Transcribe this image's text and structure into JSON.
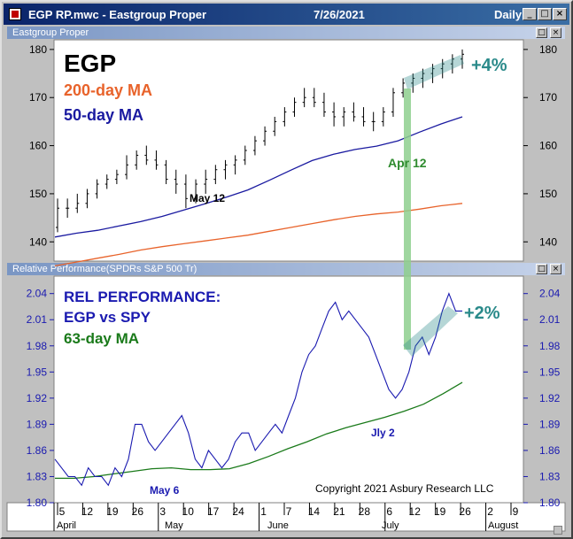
{
  "window": {
    "title": "EGP RP.mwc - Eastgroup Proper",
    "date": "7/26/2021",
    "period": "Daily",
    "min_label": "_",
    "max_label": "□",
    "close_label": "×"
  },
  "colors": {
    "price_bars": "#000000",
    "ma200": "#e8632b",
    "ma50": "#1a1aa0",
    "rel": "#1a1ab0",
    "ma63": "#1a7a1a",
    "annotation_teal": "#2a8a8a",
    "arrow_green": "#8fd08f"
  },
  "top_pane": {
    "header": "Eastgroup Proper",
    "ticker": "EGP",
    "ma200_label": "200-day MA",
    "ma50_label": "50-day MA",
    "pct_label": "+4%",
    "apr12_label": "Apr 12",
    "may12_label": "May 12"
  },
  "bottom_pane": {
    "header": "Relative Performance(SPDRs S&P 500 Tr)",
    "title_line1": "REL PERFORMANCE:",
    "title_line2": "EGP vs SPY",
    "ma_label": "63-day MA",
    "pct_label": "+2%",
    "jly2_label": "Jly 2",
    "may6_label": "May 6",
    "copyright": "Copyright 2021 Asbury Research LLC"
  },
  "x_axis": {
    "ticks": [
      "5",
      "12",
      "19",
      "26",
      "3",
      "10",
      "17",
      "24",
      "1",
      "7",
      "14",
      "21",
      "28",
      "6",
      "12",
      "19",
      "26",
      "2",
      "9"
    ],
    "months": [
      "April",
      "May",
      "June",
      "July",
      "August"
    ]
  },
  "chart_data": [
    {
      "type": "line",
      "title": "Eastgroup Proper",
      "x_dates": [
        "2021-04-01",
        "2021-04-06",
        "2021-04-12",
        "2021-04-19",
        "2021-04-26",
        "2021-05-03",
        "2021-05-07",
        "2021-05-12",
        "2021-05-17",
        "2021-05-24",
        "2021-06-01",
        "2021-06-07",
        "2021-06-14",
        "2021-06-21",
        "2021-06-28",
        "2021-07-02",
        "2021-07-06",
        "2021-07-12",
        "2021-07-19",
        "2021-07-26"
      ],
      "ylim": [
        136,
        182
      ],
      "yticks": [
        140,
        150,
        160,
        170,
        180
      ],
      "series": [
        {
          "name": "EGP",
          "type": "ohlc",
          "values": [
            [
              143,
              149,
              142,
              147
            ],
            [
              147,
              149,
              145,
              147
            ],
            [
              147,
              150,
              146,
              148
            ],
            [
              148,
              151,
              147,
              150
            ],
            [
              150,
              153,
              149,
              152
            ],
            [
              152,
              154,
              151,
              153
            ],
            [
              153,
              155,
              152,
              154
            ],
            [
              154,
              158,
              153,
              156
            ],
            [
              156,
              159,
              155,
              158
            ],
            [
              158,
              160,
              156,
              157
            ],
            [
              157,
              159,
              155,
              156
            ],
            [
              156,
              157,
              152,
              153
            ],
            [
              153,
              155,
              150,
              152
            ],
            [
              152,
              154,
              147,
              149
            ],
            [
              149,
              153,
              148,
              152
            ],
            [
              152,
              155,
              150,
              153
            ],
            [
              153,
              156,
              152,
              155
            ],
            [
              155,
              157,
              153,
              156
            ],
            [
              156,
              158,
              154,
              157
            ],
            [
              157,
              160,
              156,
              159
            ],
            [
              159,
              162,
              158,
              161
            ],
            [
              161,
              164,
              160,
              163
            ],
            [
              163,
              166,
              162,
              165
            ],
            [
              165,
              168,
              164,
              167
            ],
            [
              167,
              170,
              166,
              169
            ],
            [
              169,
              172,
              168,
              170
            ],
            [
              170,
              172,
              168,
              169
            ],
            [
              169,
              171,
              166,
              167
            ],
            [
              167,
              169,
              164,
              166
            ],
            [
              166,
              168,
              164,
              167
            ],
            [
              167,
              169,
              165,
              166
            ],
            [
              166,
              168,
              164,
              165
            ],
            [
              165,
              167,
              163,
              165
            ],
            [
              165,
              168,
              164,
              167
            ],
            [
              167,
              172,
              166,
              171
            ],
            [
              171,
              174,
              170,
              173
            ],
            [
              173,
              175,
              171,
              174
            ],
            [
              174,
              176,
              172,
              175
            ],
            [
              175,
              177,
              173,
              176
            ],
            [
              176,
              178,
              174,
              177
            ],
            [
              177,
              179,
              175,
              178
            ],
            [
              178,
              180,
              176,
              179
            ]
          ]
        },
        {
          "name": "50-day MA",
          "values": [
            141,
            141.8,
            142.4,
            143.3,
            144.2,
            145.3,
            146.6,
            147.9,
            149.3,
            150.8,
            152.8,
            154.9,
            156.9,
            158.2,
            159.2,
            159.9,
            161,
            162.8,
            164.5,
            166
          ]
        },
        {
          "name": "200-day MA",
          "values": [
            135,
            135.8,
            136.6,
            137.4,
            138.3,
            139,
            139.6,
            140.2,
            140.8,
            141.4,
            142.2,
            143,
            143.8,
            144.6,
            145.3,
            145.8,
            146.2,
            146.8,
            147.5,
            148
          ]
        }
      ],
      "annotations": [
        "EGP",
        "200-day MA",
        "50-day MA",
        "+4%",
        "Apr 12",
        "May 12"
      ]
    },
    {
      "type": "line",
      "title": "Relative Performance(SPDRs S&P 500 Tr)",
      "ylim": [
        1.8,
        2.06
      ],
      "yticks": [
        1.8,
        1.83,
        1.86,
        1.89,
        1.92,
        1.95,
        1.98,
        2.01,
        2.04
      ],
      "series": [
        {
          "name": "REL PERFORMANCE: EGP vs SPY",
          "values": [
            1.85,
            1.84,
            1.83,
            1.83,
            1.82,
            1.84,
            1.83,
            1.83,
            1.82,
            1.84,
            1.83,
            1.85,
            1.89,
            1.89,
            1.87,
            1.86,
            1.87,
            1.88,
            1.89,
            1.9,
            1.88,
            1.85,
            1.84,
            1.86,
            1.85,
            1.84,
            1.85,
            1.87,
            1.88,
            1.88,
            1.86,
            1.87,
            1.88,
            1.89,
            1.88,
            1.9,
            1.92,
            1.95,
            1.97,
            1.98,
            2.0,
            2.02,
            2.03,
            2.01,
            2.02,
            2.01,
            2.0,
            1.99,
            1.97,
            1.95,
            1.93,
            1.92,
            1.93,
            1.95,
            1.98,
            1.99,
            1.97,
            1.99,
            2.02,
            2.04,
            2.02,
            2.02
          ]
        },
        {
          "name": "63-day MA",
          "values": [
            1.828,
            1.828,
            1.83,
            1.833,
            1.836,
            1.839,
            1.84,
            1.838,
            1.838,
            1.839,
            1.845,
            1.853,
            1.862,
            1.87,
            1.879,
            1.886,
            1.892,
            1.898,
            1.905,
            1.913,
            1.925,
            1.938
          ]
        }
      ],
      "annotations": [
        "+2%",
        "Jly 2",
        "May 6",
        "Copyright 2021 Asbury Research LLC"
      ]
    }
  ]
}
